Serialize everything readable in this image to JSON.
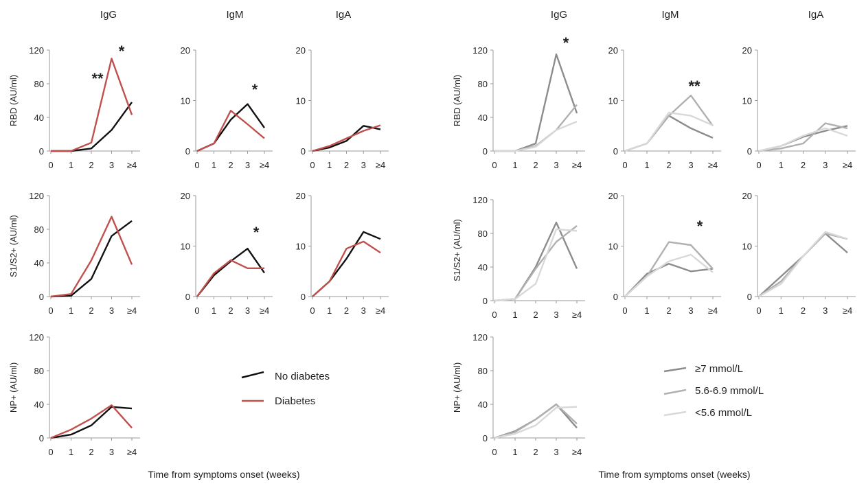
{
  "x_categories": [
    "0",
    "1",
    "2",
    "3",
    "≥4"
  ],
  "left": {
    "column_titles": [
      "IgG",
      "IgM",
      "IgA"
    ],
    "x_axis_label": "Time from symptoms onset (weeks)",
    "legend": [
      {
        "name": "No diabetes",
        "color": "#111111"
      },
      {
        "name": "Diabetes",
        "color": "#c0504d"
      }
    ]
  },
  "right": {
    "column_titles": [
      "IgG",
      "IgM",
      "IgA"
    ],
    "x_axis_label": "Time from symptoms onset (weeks)",
    "legend": [
      {
        "name": "≥7 mmol/L",
        "color": "#8c8c8c"
      },
      {
        "name": "5.6-6.9 mmol/L",
        "color": "#b0b0b0"
      },
      {
        "name": "<5.6 mmol/L",
        "color": "#d8d8d8"
      }
    ]
  },
  "chart_data": [
    {
      "type": "line",
      "panel": "left-RBD-IgG",
      "row_label": "RBD (AU/ml)",
      "ylim": [
        0,
        120
      ],
      "yticks": [
        "0",
        "40",
        "80",
        "120"
      ],
      "categories": [
        "0",
        "1",
        "2",
        "3",
        "≥4"
      ],
      "annotations": [
        "**",
        "*"
      ],
      "series": [
        {
          "name": "No diabetes",
          "color": "#111111",
          "values": [
            0,
            0,
            3,
            25,
            58
          ]
        },
        {
          "name": "Diabetes",
          "color": "#c0504d",
          "values": [
            0,
            0,
            10,
            110,
            43
          ]
        }
      ]
    },
    {
      "type": "line",
      "panel": "left-RBD-IgM",
      "row_label": "",
      "ylim": [
        0,
        20
      ],
      "yticks": [
        "0",
        "10",
        "20"
      ],
      "categories": [
        "0",
        "1",
        "2",
        "3",
        "≥4"
      ],
      "annotations": [
        "*"
      ],
      "series": [
        {
          "name": "No diabetes",
          "color": "#111111",
          "values": [
            0,
            1.5,
            6.2,
            9.3,
            4.6
          ]
        },
        {
          "name": "Diabetes",
          "color": "#c0504d",
          "values": [
            0,
            1.5,
            8,
            5.3,
            2.5
          ]
        }
      ]
    },
    {
      "type": "line",
      "panel": "left-RBD-IgA",
      "row_label": "",
      "ylim": [
        0,
        20
      ],
      "yticks": [
        "0",
        "10",
        "20"
      ],
      "categories": [
        "0",
        "1",
        "2",
        "3",
        "≥4"
      ],
      "annotations": [],
      "series": [
        {
          "name": "No diabetes",
          "color": "#111111",
          "values": [
            0,
            0.7,
            2,
            5,
            4.3
          ]
        },
        {
          "name": "Diabetes",
          "color": "#c0504d",
          "values": [
            0,
            1,
            2.5,
            4,
            5.1
          ]
        }
      ]
    },
    {
      "type": "line",
      "panel": "left-S1S2-IgG",
      "row_label": "S1/S2+ (AU/ml)",
      "ylim": [
        0,
        120
      ],
      "yticks": [
        "0",
        "40",
        "80",
        "120"
      ],
      "categories": [
        "0",
        "1",
        "2",
        "3",
        "≥4"
      ],
      "annotations": [],
      "series": [
        {
          "name": "No diabetes",
          "color": "#111111",
          "values": [
            0,
            1,
            21,
            72,
            90
          ]
        },
        {
          "name": "Diabetes",
          "color": "#c0504d",
          "values": [
            0,
            3,
            43,
            95,
            38
          ]
        }
      ]
    },
    {
      "type": "line",
      "panel": "left-S1S2-IgM",
      "row_label": "",
      "ylim": [
        0,
        20
      ],
      "yticks": [
        "0",
        "10",
        "20"
      ],
      "categories": [
        "0",
        "1",
        "2",
        "3",
        "≥4"
      ],
      "annotations": [
        "*"
      ],
      "series": [
        {
          "name": "No diabetes",
          "color": "#111111",
          "values": [
            0,
            4.2,
            7,
            9.5,
            4.7
          ]
        },
        {
          "name": "Diabetes",
          "color": "#c0504d",
          "values": [
            0,
            4.6,
            7.2,
            5.6,
            5.6
          ]
        }
      ]
    },
    {
      "type": "line",
      "panel": "left-S1S2-IgA",
      "row_label": "",
      "ylim": [
        0,
        20
      ],
      "yticks": [
        "0",
        "10",
        "20"
      ],
      "categories": [
        "0",
        "1",
        "2",
        "3",
        "≥4"
      ],
      "annotations": [],
      "series": [
        {
          "name": "No diabetes",
          "color": "#111111",
          "values": [
            0,
            3,
            7.5,
            12.8,
            11.4
          ]
        },
        {
          "name": "Diabetes",
          "color": "#c0504d",
          "values": [
            0,
            3,
            9.5,
            10.9,
            8.7
          ]
        }
      ]
    },
    {
      "type": "line",
      "panel": "left-NP-IgG",
      "row_label": "NP+ (AU/ml)",
      "ylim": [
        0,
        120
      ],
      "yticks": [
        "0",
        "40",
        "80",
        "120"
      ],
      "categories": [
        "0",
        "1",
        "2",
        "3",
        "≥4"
      ],
      "annotations": [],
      "series": [
        {
          "name": "No diabetes",
          "color": "#111111",
          "values": [
            0,
            4,
            15,
            37,
            35
          ]
        },
        {
          "name": "Diabetes",
          "color": "#c0504d",
          "values": [
            0,
            10,
            23,
            39,
            12
          ]
        }
      ]
    },
    {
      "type": "line",
      "panel": "right-RBD-IgG",
      "row_label": "RBD (AU/ml)",
      "ylim": [
        0,
        120
      ],
      "yticks": [
        "0",
        "40",
        "80",
        "120"
      ],
      "categories": [
        "0",
        "1",
        "2",
        "3",
        "≥4"
      ],
      "annotations": [
        "*"
      ],
      "series": [
        {
          "name": "≥7 mmol/L",
          "color": "#8c8c8c",
          "values": [
            0,
            0,
            9,
            115,
            45
          ]
        },
        {
          "name": "5.6-6.9 mmol/L",
          "color": "#b0b0b0",
          "values": [
            0,
            0,
            6,
            25,
            55
          ]
        },
        {
          "name": "<5.6 mmol/L",
          "color": "#d8d8d8",
          "values": [
            0,
            0,
            5,
            25,
            35
          ]
        }
      ]
    },
    {
      "type": "line",
      "panel": "right-RBD-IgM",
      "row_label": "",
      "ylim": [
        0,
        20
      ],
      "yticks": [
        "0",
        "10",
        "20"
      ],
      "categories": [
        "0",
        "1",
        "2",
        "3",
        "≥4"
      ],
      "annotations": [
        "**"
      ],
      "series": [
        {
          "name": "≥7 mmol/L",
          "color": "#8c8c8c",
          "values": [
            0,
            1.5,
            7,
            4.5,
            2.6
          ]
        },
        {
          "name": "5.6-6.9 mmol/L",
          "color": "#b0b0b0",
          "values": [
            0,
            1.5,
            7,
            11,
            5
          ]
        },
        {
          "name": "<5.6 mmol/L",
          "color": "#d8d8d8",
          "values": [
            0,
            1.5,
            7.6,
            7,
            5.1
          ]
        }
      ]
    },
    {
      "type": "line",
      "panel": "right-RBD-IgA",
      "row_label": "",
      "ylim": [
        0,
        20
      ],
      "yticks": [
        "0",
        "10",
        "20"
      ],
      "categories": [
        "0",
        "1",
        "2",
        "3",
        "≥4"
      ],
      "annotations": [],
      "series": [
        {
          "name": "≥7 mmol/L",
          "color": "#8c8c8c",
          "values": [
            0,
            1,
            2.8,
            4,
            5
          ]
        },
        {
          "name": "5.6-6.9 mmol/L",
          "color": "#b0b0b0",
          "values": [
            0,
            0.5,
            1.5,
            5.5,
            4.5
          ]
        },
        {
          "name": "<5.6 mmol/L",
          "color": "#d8d8d8",
          "values": [
            0,
            1,
            3,
            4.5,
            3
          ]
        }
      ]
    },
    {
      "type": "line",
      "panel": "right-S1S2-IgG",
      "row_label": "S1/S2+ (AU/ml)",
      "ylim": [
        0,
        120
      ],
      "yticks": [
        "0",
        "40",
        "80",
        "120"
      ],
      "categories": [
        "0",
        "1",
        "2",
        "3",
        "≥4"
      ],
      "annotations": [],
      "series": [
        {
          "name": "≥7 mmol/L",
          "color": "#8c8c8c",
          "values": [
            0,
            2,
            40,
            93,
            38
          ]
        },
        {
          "name": "5.6-6.9 mmol/L",
          "color": "#b0b0b0",
          "values": [
            0,
            2,
            38,
            70,
            89
          ]
        },
        {
          "name": "<5.6 mmol/L",
          "color": "#d8d8d8",
          "values": [
            0,
            2,
            20,
            85,
            83
          ]
        }
      ]
    },
    {
      "type": "line",
      "panel": "right-S1S2-IgM",
      "row_label": "",
      "ylim": [
        0,
        20
      ],
      "yticks": [
        "0",
        "10",
        "20"
      ],
      "categories": [
        "0",
        "1",
        "2",
        "3",
        "≥4"
      ],
      "annotations": [
        "*"
      ],
      "series": [
        {
          "name": "≥7 mmol/L",
          "color": "#8c8c8c",
          "values": [
            0,
            4.5,
            6.5,
            5,
            5.5
          ]
        },
        {
          "name": "5.6-6.9 mmol/L",
          "color": "#b0b0b0",
          "values": [
            0,
            4,
            10.8,
            10.2,
            5.5
          ]
        },
        {
          "name": "<5.6 mmol/L",
          "color": "#d8d8d8",
          "values": [
            0,
            4,
            7,
            8.3,
            4.8
          ]
        }
      ]
    },
    {
      "type": "line",
      "panel": "right-S1S2-IgA",
      "row_label": "",
      "ylim": [
        0,
        20
      ],
      "yticks": [
        "0",
        "10",
        "20"
      ],
      "categories": [
        "0",
        "1",
        "2",
        "3",
        "≥4"
      ],
      "annotations": [],
      "series": [
        {
          "name": "≥7 mmol/L",
          "color": "#8c8c8c",
          "values": [
            0,
            4,
            8,
            12.5,
            8.7
          ]
        },
        {
          "name": "5.6-6.9 mmol/L",
          "color": "#b0b0b0",
          "values": [
            0,
            3,
            8,
            12.5,
            11.4
          ]
        },
        {
          "name": "<5.6 mmol/L",
          "color": "#d8d8d8",
          "values": [
            0,
            2.5,
            8,
            12.8,
            11.4
          ]
        }
      ]
    },
    {
      "type": "line",
      "panel": "right-NP-IgG",
      "row_label": "NP+ (AU/ml)",
      "ylim": [
        0,
        120
      ],
      "yticks": [
        "0",
        "40",
        "80",
        "120"
      ],
      "categories": [
        "0",
        "1",
        "2",
        "3",
        "≥4"
      ],
      "annotations": [],
      "series": [
        {
          "name": "≥7 mmol/L",
          "color": "#8c8c8c",
          "values": [
            0,
            8,
            22,
            40,
            12
          ]
        },
        {
          "name": "5.6-6.9 mmol/L",
          "color": "#b0b0b0",
          "values": [
            0,
            7,
            22,
            40,
            17
          ]
        },
        {
          "name": "<5.6 mmol/L",
          "color": "#d8d8d8",
          "values": [
            0,
            5,
            15,
            36,
            37
          ]
        }
      ]
    }
  ]
}
